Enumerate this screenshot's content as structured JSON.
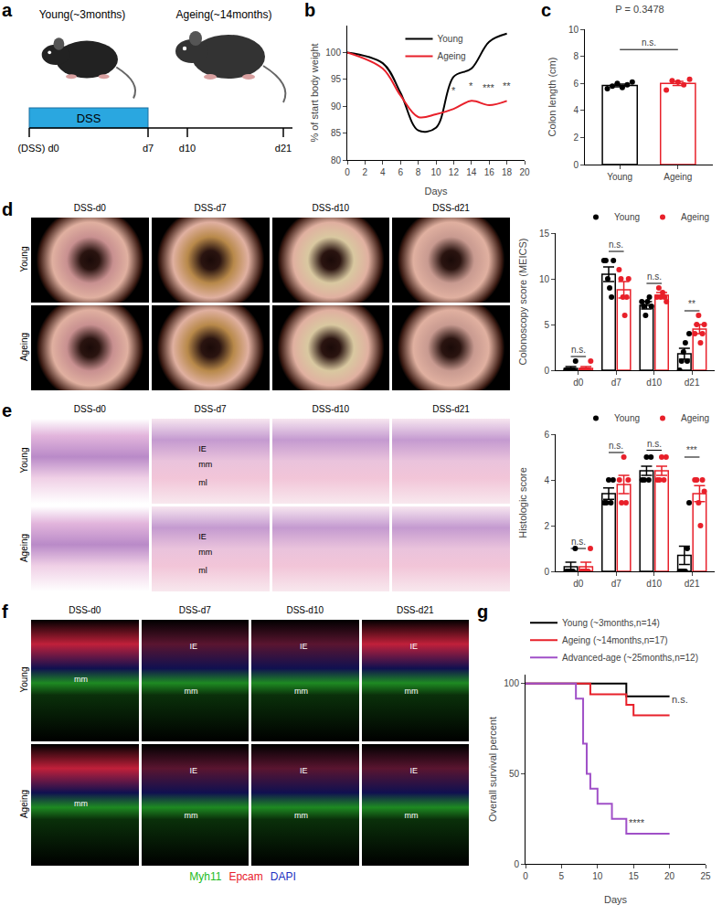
{
  "figure": {
    "a": {
      "panel": "a",
      "young_label": "Young(~3months)",
      "ageing_label": "Ageing(~14months)",
      "treatment": "DSS",
      "timeline": [
        "(DSS) d0",
        "d7",
        "d10",
        "d21"
      ]
    },
    "d_images": {
      "panel": "d",
      "columns": [
        "DSS-d0",
        "DSS-d7",
        "DSS-d10",
        "DSS-d21"
      ],
      "rows": [
        "Young",
        "Ageing"
      ]
    },
    "e_images": {
      "panel": "e",
      "columns": [
        "DSS-d0",
        "DSS-d7",
        "DSS-d10",
        "DSS-d21"
      ],
      "rows": [
        "Young",
        "Ageing"
      ],
      "labels": [
        [
          [],
          [
            "IE",
            "mm",
            "ml"
          ],
          [],
          []
        ],
        [
          [],
          [
            "IE",
            "mm",
            "ml"
          ],
          [],
          []
        ]
      ]
    },
    "f_images": {
      "panel": "f",
      "columns": [
        "DSS-d0",
        "DSS-d7",
        "DSS-d10",
        "DSS-d21"
      ],
      "rows": [
        "Young",
        "Ageing"
      ],
      "labels": [
        [
          [
            "mm"
          ],
          [
            "IE",
            "mm"
          ],
          [
            "IE",
            "mm"
          ],
          [
            "IE",
            "mm"
          ]
        ],
        [
          [
            "mm"
          ],
          [
            "IE",
            "mm"
          ],
          [
            "IE",
            "mm"
          ],
          [
            "IE",
            "mm"
          ]
        ]
      ],
      "stains": [
        {
          "name": "Myh11",
          "color": "#22bb22"
        },
        {
          "name": "Epcam",
          "color": "#e8202a"
        },
        {
          "name": "DAPI",
          "color": "#2030c0"
        }
      ]
    }
  },
  "chart_data": [
    {
      "panel": "b",
      "type": "line",
      "line_style": "smooth",
      "x": [
        0,
        4,
        6,
        8,
        10,
        12,
        14,
        16,
        18
      ],
      "series": [
        {
          "name": "Young",
          "color": "#000000",
          "values": [
            100,
            98,
            92.5,
            85.5,
            86,
            95.5,
            97,
            102,
            103.5
          ]
        },
        {
          "name": "Ageing",
          "color": "#e8202a",
          "values": [
            100,
            97,
            92,
            88,
            88.5,
            89.5,
            91,
            90.2,
            91
          ]
        }
      ],
      "xlim": [
        0,
        20
      ],
      "xticks": [
        0,
        2,
        4,
        6,
        8,
        10,
        12,
        14,
        16,
        18,
        20
      ],
      "ylim": [
        80,
        105
      ],
      "yticks": [
        80,
        85,
        90,
        95,
        100
      ],
      "x_label": "Days",
      "y_label": "% of start body weight",
      "legend": "top",
      "grid": false,
      "annotations": [
        {
          "x": 12,
          "y": 91.5,
          "text": "*"
        },
        {
          "x": 14,
          "y": 92.5,
          "text": "*"
        },
        {
          "x": 16,
          "y": 92,
          "text": "***"
        },
        {
          "x": 18,
          "y": 92.5,
          "text": "**"
        }
      ]
    },
    {
      "panel": "c",
      "type": "bar",
      "title": "P = 0.3478",
      "categories": [
        "Young",
        "Ageing"
      ],
      "values": [
        5.85,
        6.0
      ],
      "errors": [
        0.1,
        0.15
      ],
      "points": [
        [
          5.6,
          5.8,
          6.0,
          5.7,
          5.9,
          6.1
        ],
        [
          5.5,
          6.2,
          6.1,
          5.9,
          6.3
        ]
      ],
      "colors": [
        "#000000",
        "#e8202a"
      ],
      "marker": "circle",
      "ylim": [
        0,
        10
      ],
      "yticks": [
        0,
        2,
        4,
        6,
        8,
        10
      ],
      "y_label": "Colon length (cm)",
      "grid": false,
      "annotations": [
        {
          "y": 8.5,
          "text": "n.s."
        }
      ]
    },
    {
      "panel": "d",
      "type": "bar",
      "categories": [
        "d0",
        "d7",
        "d10",
        "d21"
      ],
      "marker": "circle",
      "series": [
        {
          "name": "Young",
          "color": "#000000",
          "values": [
            0.2,
            10.5,
            7.1,
            1.8
          ],
          "errors": [
            0.2,
            0.8,
            0.4,
            0.6
          ],
          "points": [
            [
              0,
              0,
              0,
              0,
              0,
              1
            ],
            [
              12,
              12,
              10,
              9,
              8,
              12
            ],
            [
              7.5,
              7,
              6,
              7.5,
              8,
              7
            ],
            [
              0,
              1,
              2,
              3,
              1,
              4
            ]
          ]
        },
        {
          "name": "Ageing",
          "color": "#e8202a",
          "values": [
            0.2,
            8.8,
            8.2,
            4.5
          ],
          "errors": [
            0.2,
            0.9,
            0.3,
            0.5
          ],
          "points": [
            [
              0,
              0,
              0,
              0,
              0,
              1
            ],
            [
              11,
              10,
              8,
              6,
              8,
              10
            ],
            [
              8,
              9,
              8,
              8.5,
              8,
              7.5
            ],
            [
              4,
              5,
              6,
              3,
              4,
              5
            ]
          ]
        }
      ],
      "ylim": [
        0,
        15
      ],
      "yticks": [
        0,
        5,
        10,
        15
      ],
      "y_label": "Colonoscopy score (MEICS)",
      "legend": "top right",
      "grid": false,
      "annotations": [
        {
          "category": "d0",
          "y": 1.5,
          "text": "n.s."
        },
        {
          "category": "d7",
          "y": 13,
          "text": "n.s."
        },
        {
          "category": "d10",
          "y": 9.5,
          "text": "n.s."
        },
        {
          "category": "d21",
          "y": 6.5,
          "text": "**"
        }
      ]
    },
    {
      "panel": "e",
      "type": "bar",
      "categories": [
        "d0",
        "d7",
        "d10",
        "d21"
      ],
      "marker": "circle",
      "series": [
        {
          "name": "Young",
          "color": "#000000",
          "values": [
            0.2,
            3.4,
            4.4,
            0.7
          ],
          "errors": [
            0.2,
            0.25,
            0.2,
            0.4
          ],
          "points": [
            [
              0,
              0,
              0,
              0,
              1
            ],
            [
              3,
              3,
              4,
              3,
              4
            ],
            [
              4,
              4,
              5,
              4,
              5
            ],
            [
              0,
              0,
              0,
              0,
              1,
              3
            ]
          ]
        },
        {
          "name": "Ageing",
          "color": "#e8202a",
          "values": [
            0.2,
            3.8,
            4.4,
            3.4
          ],
          "errors": [
            0.2,
            0.4,
            0.2,
            0.35
          ],
          "points": [
            [
              0,
              0,
              0,
              0,
              1
            ],
            [
              4,
              3,
              5,
              3,
              4
            ],
            [
              4,
              4,
              5,
              4,
              5
            ],
            [
              4,
              4,
              3,
              2,
              4,
              3.5
            ]
          ]
        }
      ],
      "ylim": [
        0,
        6
      ],
      "yticks": [
        0,
        2,
        4,
        6
      ],
      "y_label": "Histologic score",
      "legend": "top right",
      "grid": false,
      "annotations": [
        {
          "category": "d0",
          "y": 1.0,
          "text": "n.s."
        },
        {
          "category": "d7",
          "y": 5.2,
          "text": "n.s."
        },
        {
          "category": "d10",
          "y": 5.3,
          "text": "n.s."
        },
        {
          "category": "d21",
          "y": 5.0,
          "text": "***"
        }
      ]
    },
    {
      "panel": "g",
      "type": "line",
      "line_style": "step",
      "series": [
        {
          "name": "Young (~3months,n=14)",
          "color": "#000000",
          "x": [
            0,
            14,
            20
          ],
          "values": [
            100,
            92.9,
            92.9
          ]
        },
        {
          "name": "Ageing (~14months,n=17)",
          "color": "#e8202a",
          "x": [
            0,
            9,
            14,
            15,
            20
          ],
          "values": [
            100,
            94.1,
            88.2,
            82.4,
            82.4
          ]
        },
        {
          "name": "Advanced-age (~25months,n=12)",
          "color": "#a050c8",
          "x": [
            0,
            7,
            8,
            8.5,
            9,
            10,
            12,
            14,
            20
          ],
          "values": [
            100,
            91.7,
            66.7,
            50,
            41.7,
            33.3,
            25,
            16.7,
            16.7
          ]
        }
      ],
      "xlim": [
        0,
        25
      ],
      "xticks": [
        0,
        5,
        10,
        15,
        20,
        25
      ],
      "ylim": [
        0,
        105
      ],
      "yticks": [
        0,
        50,
        100
      ],
      "x_label": "Days",
      "y_label": "Overall survival percent",
      "legend": "top left",
      "grid": false,
      "annotations": [
        {
          "x": 21.5,
          "y": 87,
          "text": "n.s."
        },
        {
          "x": 15.5,
          "y": 19,
          "text": "****"
        }
      ]
    }
  ]
}
